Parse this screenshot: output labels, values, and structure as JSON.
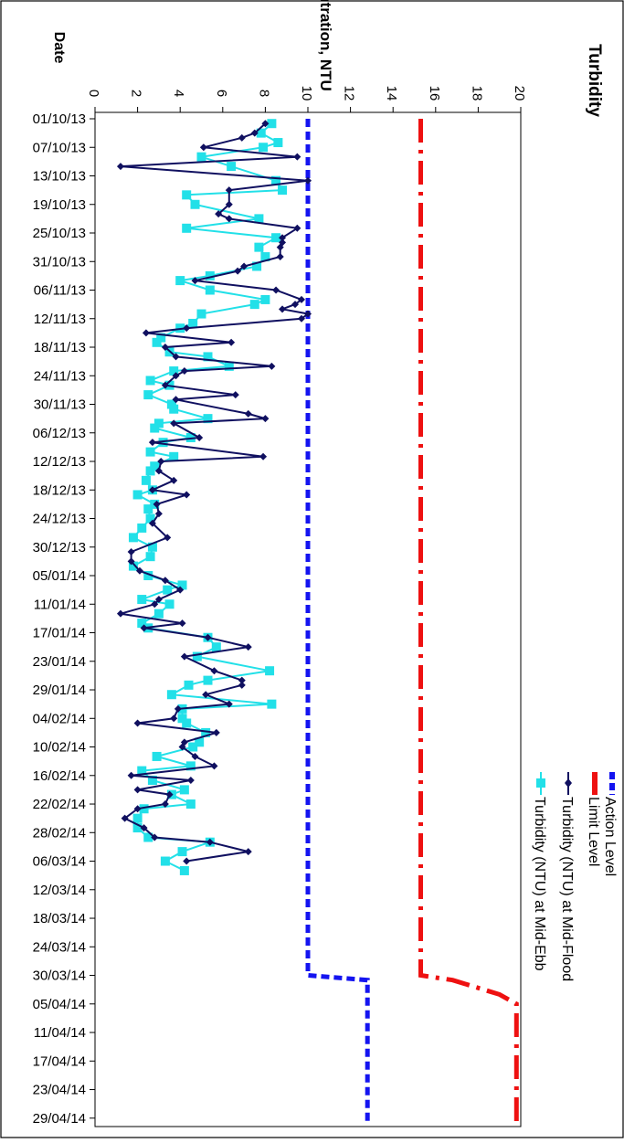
{
  "chart_data": {
    "type": "line",
    "title": "Turbidity",
    "xlabel": "Date",
    "ylabel": "Concentration, NTU",
    "ylim": [
      0,
      20
    ],
    "y_ticks": [
      "0",
      "2",
      "4",
      "6",
      "8",
      "10",
      "12",
      "14",
      "16",
      "18",
      "20"
    ],
    "x_tick_labels": [
      "01/10/13",
      "07/10/13",
      "13/10/13",
      "19/10/13",
      "25/10/13",
      "31/10/13",
      "06/11/13",
      "12/11/13",
      "18/11/13",
      "24/11/13",
      "30/11/13",
      "06/12/13",
      "12/12/13",
      "18/12/13",
      "24/12/13",
      "30/12/13",
      "05/01/14",
      "11/01/14",
      "17/01/14",
      "23/01/14",
      "29/01/14",
      "04/02/14",
      "10/02/14",
      "16/02/14",
      "22/02/14",
      "28/02/14",
      "06/03/14",
      "12/03/14",
      "18/03/14",
      "24/03/14",
      "30/03/14",
      "05/04/14",
      "11/04/14",
      "17/04/14",
      "23/04/14",
      "29/04/14"
    ],
    "x_range_days": [
      0,
      211
    ],
    "legend_position": "top-right",
    "rotated": true,
    "series": [
      {
        "name": "Action Level",
        "color": "#1414f0",
        "style": "dashed",
        "values": [
          [
            0,
            10
          ],
          [
            180,
            10
          ],
          [
            181,
            12.8
          ],
          [
            211,
            12.8
          ]
        ]
      },
      {
        "name": "Limit Level",
        "color": "#ee1111",
        "style": "dashdot",
        "values": [
          [
            0,
            15.3
          ],
          [
            180,
            15.3
          ],
          [
            181,
            16.8
          ],
          [
            184,
            19.0
          ],
          [
            186,
            19.8
          ],
          [
            211,
            19.8
          ]
        ]
      },
      {
        "name": "Turbidity (NTU) at Mid-Flood",
        "color": "#101060",
        "marker": "diamond",
        "values": [
          [
            1,
            8.0
          ],
          [
            3,
            7.5
          ],
          [
            4,
            6.9
          ],
          [
            6,
            5.1
          ],
          [
            8,
            9.5
          ],
          [
            10,
            1.2
          ],
          [
            13,
            10.0
          ],
          [
            15,
            6.3
          ],
          [
            18,
            6.3
          ],
          [
            20,
            5.8
          ],
          [
            21,
            6.3
          ],
          [
            23,
            9.5
          ],
          [
            25,
            8.8
          ],
          [
            26,
            8.8
          ],
          [
            27,
            8.7
          ],
          [
            29,
            8.7
          ],
          [
            31,
            7.0
          ],
          [
            32,
            6.7
          ],
          [
            34,
            4.7
          ],
          [
            36,
            8.5
          ],
          [
            38,
            9.7
          ],
          [
            39,
            9.4
          ],
          [
            40,
            8.8
          ],
          [
            41,
            10.0
          ],
          [
            42,
            9.7
          ],
          [
            44,
            4.3
          ],
          [
            45,
            2.4
          ],
          [
            47,
            6.4
          ],
          [
            48,
            3.3
          ],
          [
            50,
            3.8
          ],
          [
            52,
            8.3
          ],
          [
            53,
            4.2
          ],
          [
            54,
            3.8
          ],
          [
            56,
            3.3
          ],
          [
            58,
            6.6
          ],
          [
            59,
            3.8
          ],
          [
            62,
            7.2
          ],
          [
            63,
            8.0
          ],
          [
            64,
            3.7
          ],
          [
            67,
            4.9
          ],
          [
            68,
            2.7
          ],
          [
            71,
            7.9
          ],
          [
            72,
            3.1
          ],
          [
            74,
            3.0
          ],
          [
            76,
            3.7
          ],
          [
            78,
            2.7
          ],
          [
            79,
            4.3
          ],
          [
            81,
            2.9
          ],
          [
            83,
            3.0
          ],
          [
            85,
            2.7
          ],
          [
            88,
            3.4
          ],
          [
            91,
            1.7
          ],
          [
            93,
            1.7
          ],
          [
            95,
            2.1
          ],
          [
            97,
            3.3
          ],
          [
            99,
            4.0
          ],
          [
            101,
            3.0
          ],
          [
            102,
            2.8
          ],
          [
            104,
            1.2
          ],
          [
            106,
            4.1
          ],
          [
            107,
            2.3
          ],
          [
            109,
            5.3
          ],
          [
            111,
            7.2
          ],
          [
            113,
            4.2
          ],
          [
            116,
            5.6
          ],
          [
            118,
            6.9
          ],
          [
            119,
            6.9
          ],
          [
            121,
            5.2
          ],
          [
            123,
            6.3
          ],
          [
            124,
            3.9
          ],
          [
            126,
            3.7
          ],
          [
            127,
            2.0
          ],
          [
            129,
            5.7
          ],
          [
            131,
            4.2
          ],
          [
            132,
            4.1
          ],
          [
            134,
            4.7
          ],
          [
            136,
            5.6
          ],
          [
            138,
            1.7
          ],
          [
            139,
            4.5
          ],
          [
            141,
            2.0
          ],
          [
            142,
            3.5
          ],
          [
            144,
            3.3
          ],
          [
            145,
            2.0
          ],
          [
            147,
            1.4
          ],
          [
            149,
            2.3
          ],
          [
            151,
            2.8
          ],
          [
            152,
            5.4
          ],
          [
            154,
            7.2
          ],
          [
            156,
            4.3
          ]
        ]
      },
      {
        "name": "Turbidity (NTU) at Mid-Ebb",
        "color": "#22e0e8",
        "marker": "square",
        "values": [
          [
            1,
            8.3
          ],
          [
            3,
            7.8
          ],
          [
            5,
            8.6
          ],
          [
            6,
            7.9
          ],
          [
            8,
            5.0
          ],
          [
            10,
            6.4
          ],
          [
            13,
            8.5
          ],
          [
            15,
            8.8
          ],
          [
            16,
            4.3
          ],
          [
            18,
            4.7
          ],
          [
            21,
            7.7
          ],
          [
            23,
            4.3
          ],
          [
            25,
            8.5
          ],
          [
            27,
            7.7
          ],
          [
            29,
            8.0
          ],
          [
            31,
            7.6
          ],
          [
            33,
            5.4
          ],
          [
            34,
            4.0
          ],
          [
            36,
            5.4
          ],
          [
            38,
            8.0
          ],
          [
            39,
            7.5
          ],
          [
            41,
            5.0
          ],
          [
            43,
            4.6
          ],
          [
            44,
            4.0
          ],
          [
            46,
            3.1
          ],
          [
            47,
            2.9
          ],
          [
            49,
            3.5
          ],
          [
            50,
            5.3
          ],
          [
            52,
            6.3
          ],
          [
            53,
            3.7
          ],
          [
            55,
            2.6
          ],
          [
            56,
            3.5
          ],
          [
            58,
            2.5
          ],
          [
            60,
            3.6
          ],
          [
            61,
            3.7
          ],
          [
            63,
            5.3
          ],
          [
            64,
            3.0
          ],
          [
            65,
            2.8
          ],
          [
            67,
            4.5
          ],
          [
            68,
            3.2
          ],
          [
            70,
            2.6
          ],
          [
            71,
            3.7
          ],
          [
            73,
            2.8
          ],
          [
            74,
            2.6
          ],
          [
            76,
            2.4
          ],
          [
            78,
            2.7
          ],
          [
            79,
            2.0
          ],
          [
            81,
            2.8
          ],
          [
            82,
            2.5
          ],
          [
            84,
            2.6
          ],
          [
            86,
            2.2
          ],
          [
            88,
            1.8
          ],
          [
            90,
            2.7
          ],
          [
            92,
            2.6
          ],
          [
            94,
            1.8
          ],
          [
            96,
            2.5
          ],
          [
            98,
            4.1
          ],
          [
            99,
            3.4
          ],
          [
            101,
            2.2
          ],
          [
            102,
            3.5
          ],
          [
            104,
            3.0
          ],
          [
            106,
            2.2
          ],
          [
            107,
            2.5
          ],
          [
            109,
            5.3
          ],
          [
            111,
            5.7
          ],
          [
            113,
            4.8
          ],
          [
            116,
            8.2
          ],
          [
            118,
            5.3
          ],
          [
            119,
            4.4
          ],
          [
            121,
            3.6
          ],
          [
            123,
            8.3
          ],
          [
            124,
            4.1
          ],
          [
            126,
            4.1
          ],
          [
            127,
            4.3
          ],
          [
            129,
            5.2
          ],
          [
            131,
            4.9
          ],
          [
            132,
            4.6
          ],
          [
            134,
            2.9
          ],
          [
            136,
            4.5
          ],
          [
            137,
            2.2
          ],
          [
            139,
            2.7
          ],
          [
            141,
            4.2
          ],
          [
            142,
            3.6
          ],
          [
            144,
            4.5
          ],
          [
            145,
            2.3
          ],
          [
            147,
            2.0
          ],
          [
            149,
            2.0
          ],
          [
            151,
            2.5
          ],
          [
            152,
            5.4
          ],
          [
            154,
            4.1
          ],
          [
            156,
            3.3
          ],
          [
            158,
            4.2
          ]
        ]
      }
    ]
  }
}
